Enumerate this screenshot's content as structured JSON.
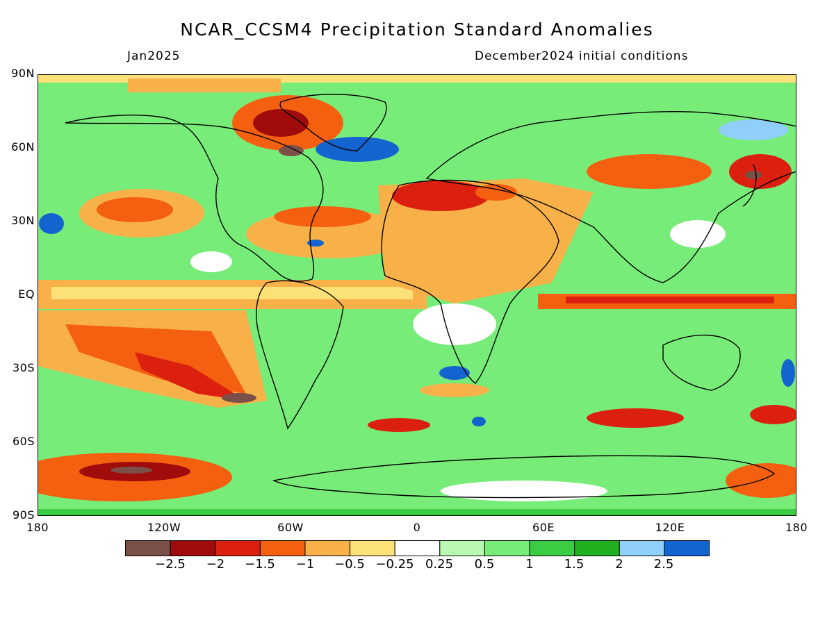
{
  "header": {
    "title": "NCAR_CCSM4 Precipitation Standard Anomalies",
    "valid_month": "Jan2025",
    "init": "December2024 initial conditions"
  },
  "axes": {
    "lat_labels": [
      "90N",
      "60N",
      "30N",
      "EQ",
      "30S",
      "60S",
      "90S"
    ],
    "lon_labels": [
      "180",
      "120W",
      "60W",
      "0",
      "60E",
      "120E",
      "180"
    ]
  },
  "colorbar": {
    "colors": [
      "#7a5048",
      "#a00c0c",
      "#dc2010",
      "#f46010",
      "#f8b048",
      "#fce078",
      "#ffffff",
      "#b8f8b0",
      "#78ec78",
      "#3ccc44",
      "#20b020",
      "#90d0f8",
      "#1464d0"
    ],
    "labels": [
      "−2.5",
      "−2",
      "−1.5",
      "−1",
      "−0.5",
      "−0.25",
      "0.25",
      "0.5",
      "1",
      "1.5",
      "2",
      "2.5"
    ]
  }
}
